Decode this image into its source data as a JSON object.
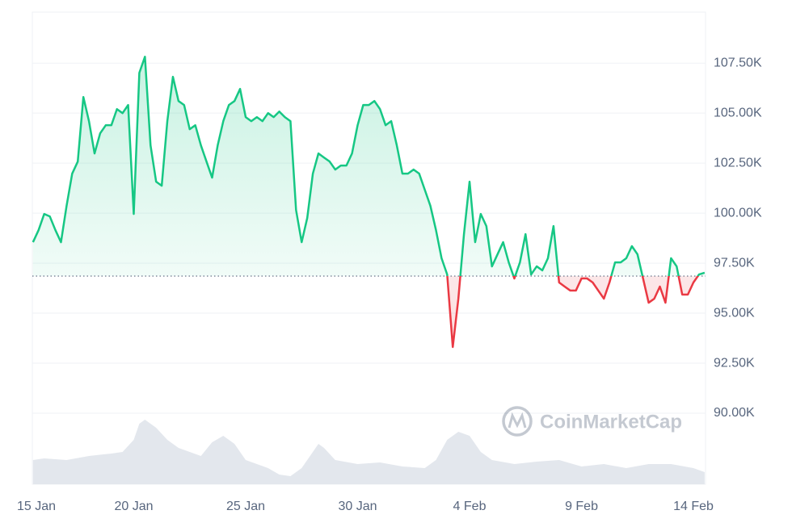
{
  "chart_data": {
    "type": "line",
    "x": [
      0.5,
      0.75,
      1,
      1.25,
      1.5,
      1.75,
      2,
      2.25,
      2.5,
      2.75,
      3,
      3.25,
      3.5,
      3.75,
      4,
      4.25,
      4.5,
      4.75,
      5,
      5.25,
      5.5,
      5.75,
      6,
      6.25,
      6.5,
      6.75,
      7,
      7.25,
      7.5,
      7.75,
      8,
      8.25,
      8.5,
      8.75,
      9,
      9.25,
      9.5,
      9.75,
      10,
      10.25,
      10.5,
      10.75,
      11,
      11.25,
      11.5,
      11.75,
      12,
      12.25,
      12.5,
      12.75,
      13,
      13.25,
      13.5,
      13.75,
      14,
      14.25,
      14.5,
      14.75,
      15,
      15.25,
      15.5,
      15.75,
      16,
      16.25,
      16.5,
      16.75,
      17,
      17.25,
      17.5,
      17.75,
      18,
      18.25,
      18.5,
      18.75,
      19,
      19.25,
      19.5,
      19.75,
      20,
      20.25,
      20.5,
      20.75,
      21,
      21.25,
      21.5,
      21.75,
      22,
      22.25,
      22.5,
      22.75,
      23,
      23.25,
      23.5,
      23.75,
      24,
      24.25,
      24.5,
      24.75,
      25,
      25.25,
      25.5,
      25.75,
      26,
      26.25,
      26.5,
      26.75,
      27,
      27.25,
      27.5,
      27.75,
      28,
      28.25,
      28.5,
      28.75,
      29,
      29.25,
      29.5,
      29.75,
      30,
      30.25,
      30.5
    ],
    "values": [
      98550,
      99155,
      99960,
      99840,
      99155,
      98550,
      100365,
      101975,
      102580,
      105805,
      104600,
      102985,
      103990,
      104395,
      104395,
      105200,
      105000,
      105405,
      99960,
      107015,
      107820,
      103390,
      101575,
      101370,
      104600,
      106815,
      105605,
      105405,
      104195,
      104395,
      103390,
      102580,
      101775,
      103390,
      104600,
      105405,
      105605,
      106210,
      104800,
      104600,
      104800,
      104600,
      105000,
      104800,
      105080,
      104800,
      104600,
      100160,
      98550,
      99760,
      101975,
      102985,
      102780,
      102580,
      102180,
      102380,
      102380,
      102985,
      104395,
      105405,
      105405,
      105605,
      105200,
      104395,
      104600,
      103390,
      101975,
      101975,
      102180,
      101975,
      101170,
      100365,
      99155,
      97745,
      96935,
      93310,
      95725,
      98950,
      101575,
      98550,
      99960,
      99355,
      97340,
      97945,
      98550,
      97540,
      96735,
      97540,
      98950,
      96935,
      97340,
      97140,
      97745,
      99355,
      96535,
      96330,
      96130,
      96130,
      96735,
      96735,
      96535,
      96130,
      95725,
      96535,
      97540,
      97540,
      97745,
      98350,
      97945,
      96735,
      95525,
      95725,
      96330,
      95525,
      97745,
      97340,
      95930,
      95930,
      96535,
      96935,
      97020
    ],
    "baseline": 96855,
    "up_color": "#16c784",
    "down_color": "#ea3943",
    "volume_x": [
      0.5,
      1,
      2,
      3,
      4,
      4.5,
      5,
      5.25,
      5.5,
      6,
      6.5,
      7,
      8,
      8.5,
      9,
      9.5,
      10,
      11,
      11.5,
      12,
      12.5,
      13,
      13.25,
      13.5,
      14,
      15,
      16,
      17,
      18,
      18.5,
      19,
      19.5,
      20,
      20.5,
      21,
      22,
      23,
      24,
      25,
      26,
      27,
      28,
      29,
      30,
      30.5
    ],
    "volume_values": [
      30,
      32,
      30,
      35,
      38,
      40,
      55,
      75,
      80,
      70,
      55,
      45,
      35,
      52,
      60,
      50,
      30,
      20,
      12,
      10,
      20,
      40,
      50,
      45,
      30,
      25,
      27,
      22,
      20,
      30,
      55,
      65,
      60,
      40,
      30,
      25,
      28,
      30,
      22,
      25,
      20,
      25,
      25,
      20,
      15
    ],
    "volume_lim": [
      0,
      80
    ],
    "volume_color": "#e3e7ed",
    "xlim": [
      0.47,
      30.54
    ],
    "ylim": [
      86450,
      110050
    ],
    "xticks": [
      {
        "value": 0,
        "label": "15 Jan"
      },
      {
        "value": 5,
        "label": "20 Jan"
      },
      {
        "value": 10,
        "label": "25 Jan"
      },
      {
        "value": 15,
        "label": "30 Jan"
      },
      {
        "value": 20,
        "label": "4 Feb"
      },
      {
        "value": 25,
        "label": "9 Feb"
      },
      {
        "value": 30,
        "label": "14 Feb"
      }
    ],
    "yticks": [
      {
        "value": 90000,
        "label": "90.00K"
      },
      {
        "value": 92500,
        "label": "92.50K"
      },
      {
        "value": 95000,
        "label": "95.00K"
      },
      {
        "value": 97500,
        "label": "97.50K"
      },
      {
        "value": 100000,
        "label": "100.00K"
      },
      {
        "value": 102500,
        "label": "102.50K"
      },
      {
        "value": 105000,
        "label": "105.00K"
      },
      {
        "value": 107500,
        "label": "107.50K"
      }
    ],
    "grid": true,
    "watermark": "CoinMarketCap"
  }
}
